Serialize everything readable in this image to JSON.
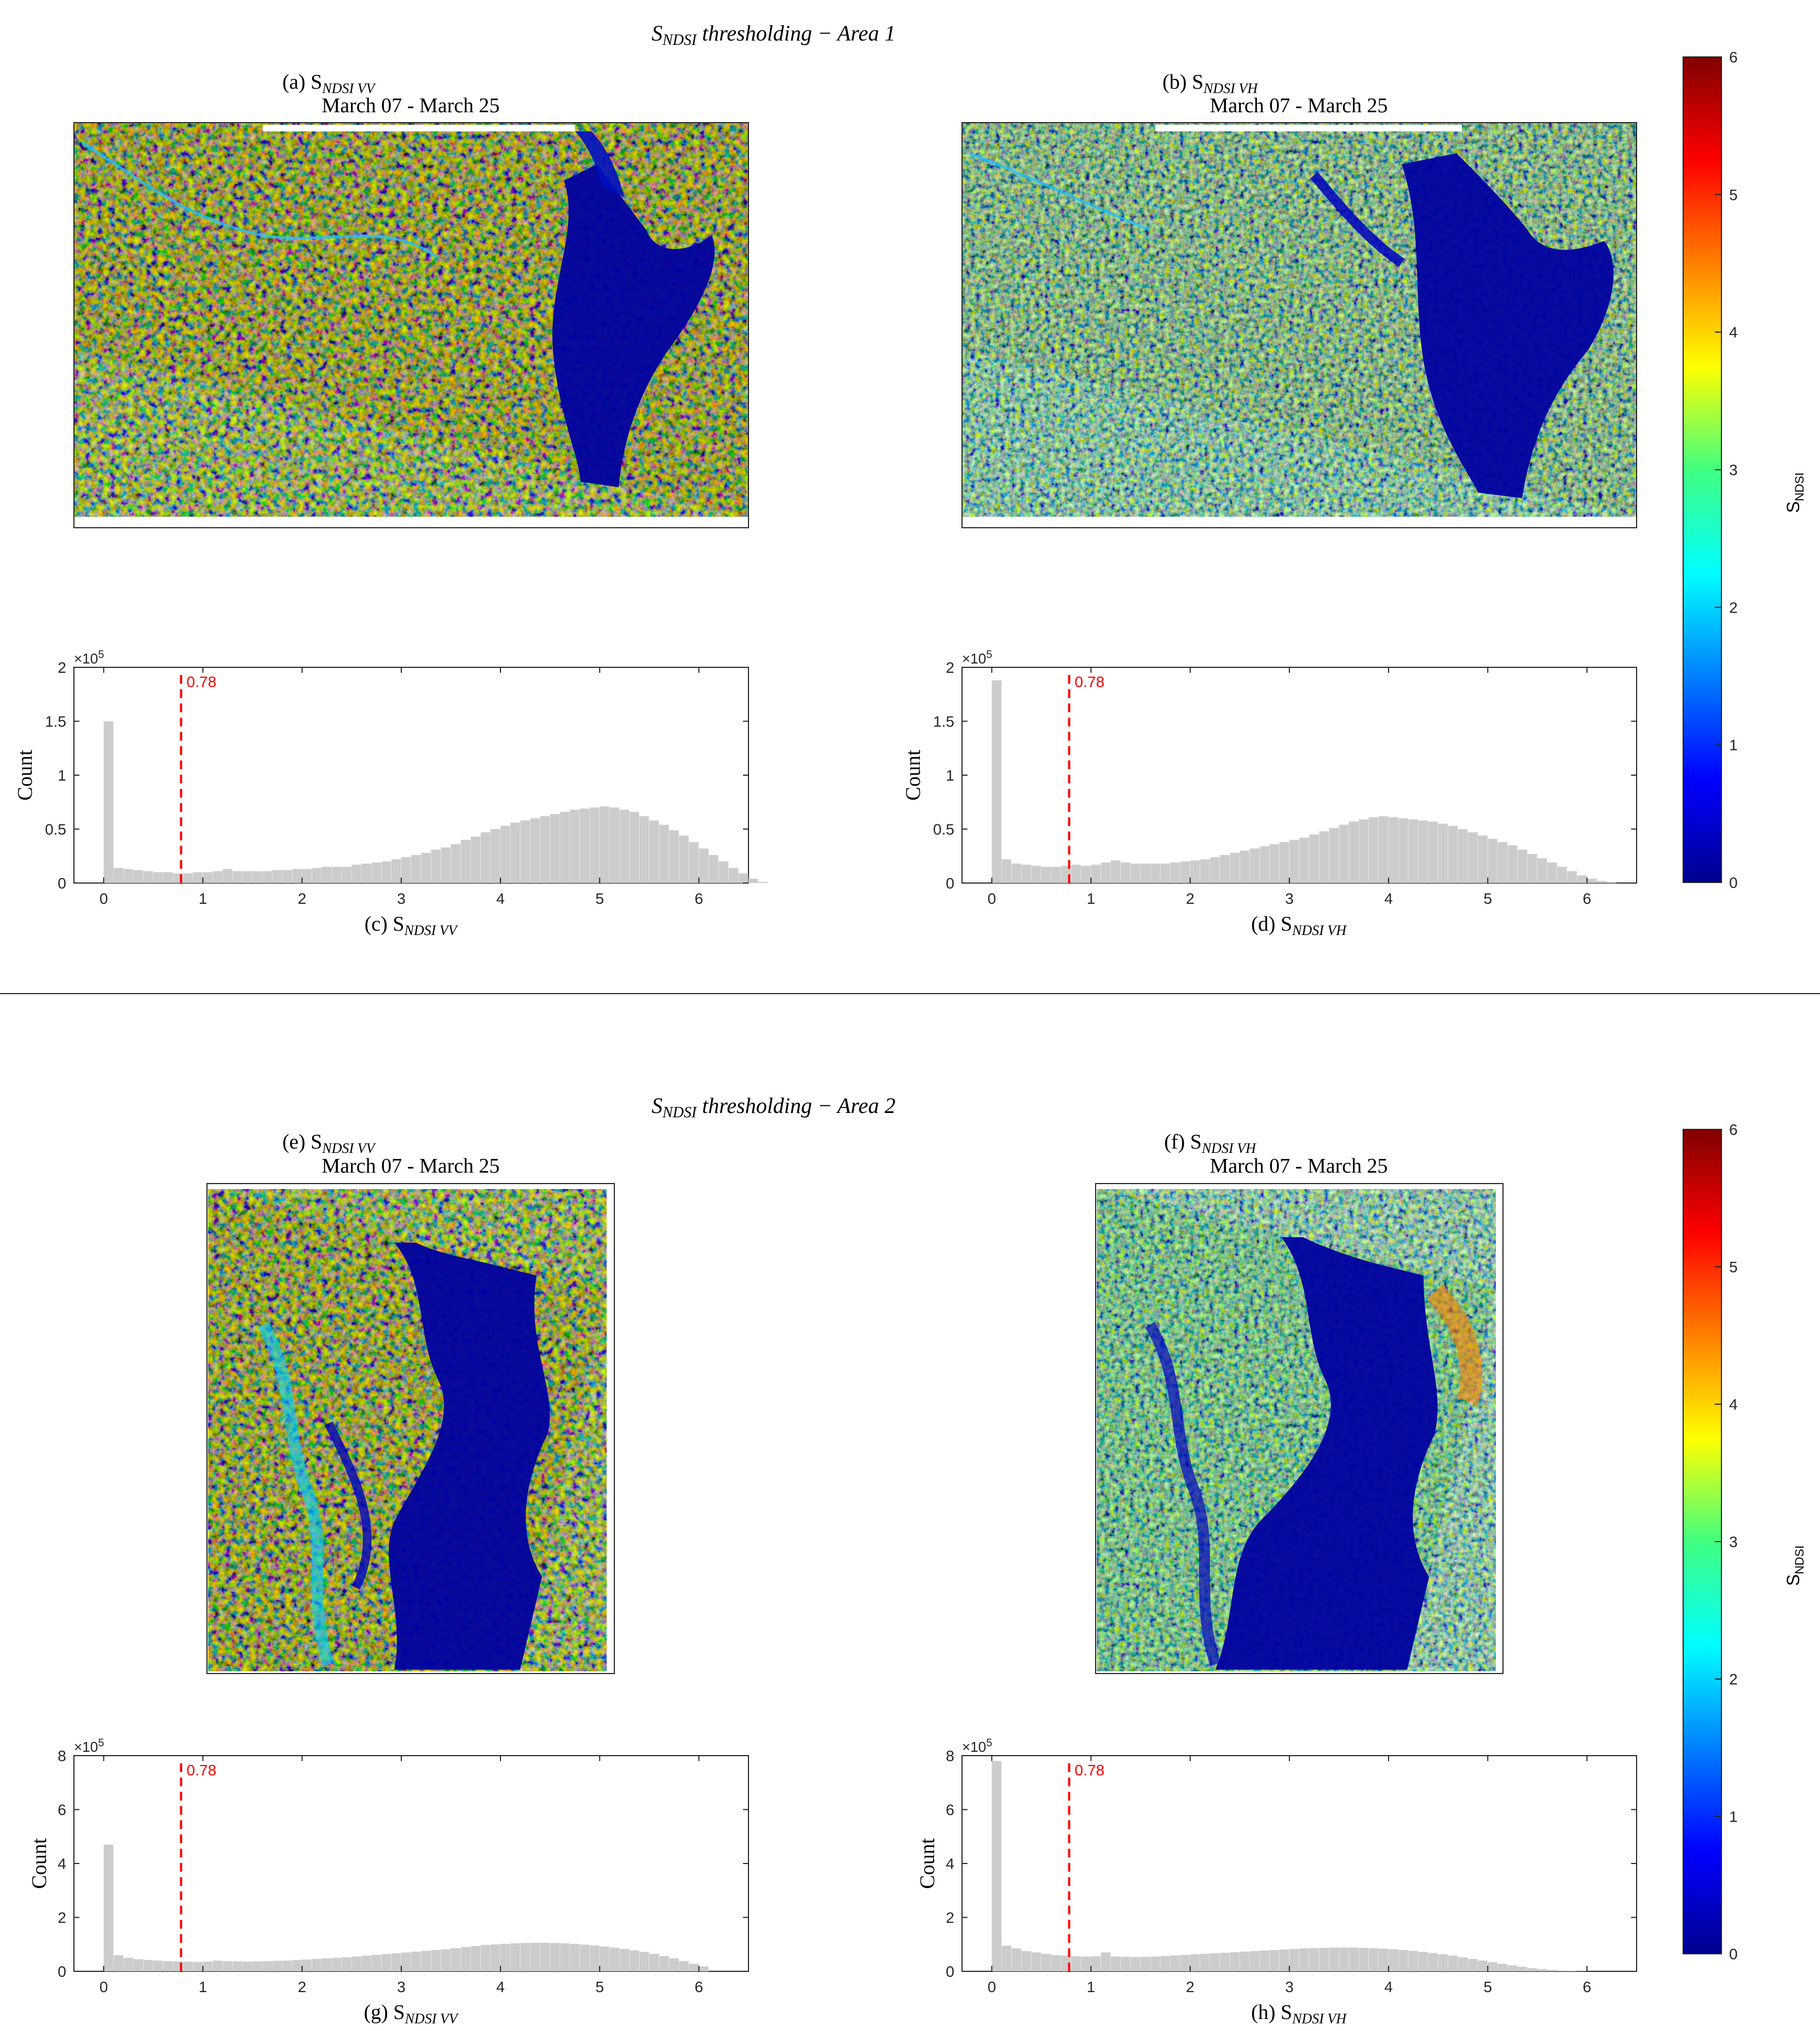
{
  "sections": [
    {
      "title_main": "S",
      "title_sub": "NDSI",
      "title_rest": " thresholding  − Area 1",
      "maps": [
        {
          "label_prefix": "(a) S",
          "label_sub": "NDSI VV",
          "date_range": "March 07 - March 25"
        },
        {
          "label_prefix": "(b) S",
          "label_sub": "NDSI VH",
          "date_range": "March 07 - March 25"
        }
      ],
      "histograms": [
        {
          "label_prefix": "(c) S",
          "label_sub": "NDSI VV"
        },
        {
          "label_prefix": "(d) S",
          "label_sub": "NDSI VH"
        }
      ]
    },
    {
      "title_main": "S",
      "title_sub": "NDSI",
      "title_rest": " thresholding  − Area 2",
      "maps": [
        {
          "label_prefix": "(e) S",
          "label_sub": "NDSI VV",
          "date_range": "March 07 - March 25"
        },
        {
          "label_prefix": "(f) S",
          "label_sub": "NDSI VH",
          "date_range": "March 07 - March 25"
        }
      ],
      "histograms": [
        {
          "label_prefix": "(g) S",
          "label_sub": "NDSI VV"
        },
        {
          "label_prefix": "(h) S",
          "label_sub": "NDSI VH"
        }
      ]
    }
  ],
  "colorbar": {
    "label_main": "S",
    "label_sub": "NDSI",
    "range": [
      0,
      6
    ],
    "ticks": [
      "0",
      "1",
      "2",
      "3",
      "4",
      "5",
      "6"
    ],
    "colormap": "jet"
  },
  "colors": {
    "histogram_bar": "#cccccc",
    "threshold_line": "#ff0000",
    "water_blue": "#00008f",
    "axis": "#262626"
  },
  "chart_data": [
    {
      "type": "bar",
      "id": "hist-c",
      "ylabel": "Count",
      "y_scale_label": "×10",
      "y_scale_exp": "5",
      "xlim": [
        -0.3,
        6.5
      ],
      "ylim": [
        0,
        2
      ],
      "x_ticks": [
        "0",
        "1",
        "2",
        "3",
        "4",
        "5",
        "6"
      ],
      "y_ticks": [
        "0",
        "0.5",
        "1",
        "1.5",
        "2"
      ],
      "threshold": 0.78,
      "threshold_label": "0.78",
      "bin_width": 0.1,
      "values": [
        1.5,
        0.14,
        0.13,
        0.12,
        0.11,
        0.1,
        0.1,
        0.09,
        0.09,
        0.1,
        0.1,
        0.11,
        0.13,
        0.11,
        0.11,
        0.11,
        0.11,
        0.12,
        0.12,
        0.13,
        0.13,
        0.14,
        0.15,
        0.15,
        0.15,
        0.17,
        0.18,
        0.19,
        0.2,
        0.22,
        0.24,
        0.26,
        0.28,
        0.31,
        0.33,
        0.36,
        0.4,
        0.43,
        0.47,
        0.5,
        0.53,
        0.56,
        0.58,
        0.6,
        0.62,
        0.64,
        0.66,
        0.68,
        0.69,
        0.7,
        0.71,
        0.7,
        0.68,
        0.66,
        0.62,
        0.58,
        0.54,
        0.49,
        0.44,
        0.38,
        0.32,
        0.26,
        0.2,
        0.14,
        0.09,
        0.04,
        0.01
      ]
    },
    {
      "type": "bar",
      "id": "hist-d",
      "ylabel": "Count",
      "y_scale_label": "×10",
      "y_scale_exp": "5",
      "xlim": [
        -0.3,
        6.5
      ],
      "ylim": [
        0,
        2
      ],
      "x_ticks": [
        "0",
        "1",
        "2",
        "3",
        "4",
        "5",
        "6"
      ],
      "y_ticks": [
        "0",
        "0.5",
        "1",
        "1.5",
        "2"
      ],
      "threshold": 0.78,
      "threshold_label": "0.78",
      "bin_width": 0.1,
      "values": [
        1.88,
        0.22,
        0.18,
        0.17,
        0.16,
        0.15,
        0.15,
        0.16,
        0.17,
        0.16,
        0.17,
        0.19,
        0.21,
        0.19,
        0.18,
        0.18,
        0.18,
        0.18,
        0.19,
        0.2,
        0.21,
        0.22,
        0.24,
        0.26,
        0.28,
        0.3,
        0.32,
        0.34,
        0.36,
        0.38,
        0.4,
        0.42,
        0.45,
        0.48,
        0.51,
        0.54,
        0.57,
        0.59,
        0.61,
        0.62,
        0.61,
        0.6,
        0.59,
        0.58,
        0.57,
        0.55,
        0.53,
        0.5,
        0.47,
        0.44,
        0.41,
        0.38,
        0.35,
        0.31,
        0.27,
        0.23,
        0.19,
        0.15,
        0.11,
        0.07,
        0.04,
        0.02,
        0.01
      ]
    },
    {
      "type": "bar",
      "id": "hist-g",
      "ylabel": "Count",
      "y_scale_label": "×10",
      "y_scale_exp": "5",
      "xlim": [
        -0.3,
        6.5
      ],
      "ylim": [
        0,
        8
      ],
      "x_ticks": [
        "0",
        "1",
        "2",
        "3",
        "4",
        "5",
        "6"
      ],
      "y_ticks": [
        "0",
        "2",
        "4",
        "6",
        "8"
      ],
      "threshold": 0.78,
      "threshold_label": "0.78",
      "bin_width": 0.1,
      "values": [
        4.7,
        0.6,
        0.5,
        0.45,
        0.42,
        0.4,
        0.38,
        0.37,
        0.36,
        0.35,
        0.36,
        0.4,
        0.38,
        0.37,
        0.36,
        0.37,
        0.38,
        0.39,
        0.4,
        0.42,
        0.44,
        0.46,
        0.48,
        0.5,
        0.52,
        0.55,
        0.58,
        0.61,
        0.64,
        0.67,
        0.7,
        0.73,
        0.76,
        0.79,
        0.82,
        0.86,
        0.9,
        0.94,
        0.98,
        1.0,
        1.02,
        1.04,
        1.05,
        1.06,
        1.06,
        1.05,
        1.04,
        1.02,
        0.99,
        0.96,
        0.92,
        0.88,
        0.83,
        0.78,
        0.72,
        0.65,
        0.57,
        0.48,
        0.38,
        0.28,
        0.18
      ]
    },
    {
      "type": "bar",
      "id": "hist-h",
      "ylabel": "Count",
      "y_scale_label": "×10",
      "y_scale_exp": "5",
      "xlim": [
        -0.3,
        6.5
      ],
      "ylim": [
        0,
        8
      ],
      "x_ticks": [
        "0",
        "1",
        "2",
        "3",
        "4",
        "5",
        "6"
      ],
      "y_ticks": [
        "0",
        "2",
        "4",
        "6",
        "8"
      ],
      "threshold": 0.78,
      "threshold_label": "0.78",
      "bin_width": 0.1,
      "values": [
        7.8,
        0.95,
        0.85,
        0.75,
        0.7,
        0.65,
        0.6,
        0.58,
        0.56,
        0.55,
        0.56,
        0.7,
        0.55,
        0.54,
        0.53,
        0.54,
        0.55,
        0.57,
        0.59,
        0.61,
        0.63,
        0.65,
        0.67,
        0.69,
        0.71,
        0.73,
        0.75,
        0.77,
        0.79,
        0.81,
        0.83,
        0.85,
        0.86,
        0.87,
        0.88,
        0.88,
        0.88,
        0.87,
        0.86,
        0.84,
        0.82,
        0.79,
        0.76,
        0.72,
        0.68,
        0.63,
        0.58,
        0.52,
        0.46,
        0.4,
        0.34,
        0.28,
        0.22,
        0.17,
        0.12,
        0.08,
        0.05,
        0.03,
        0.02,
        0.01
      ]
    }
  ]
}
